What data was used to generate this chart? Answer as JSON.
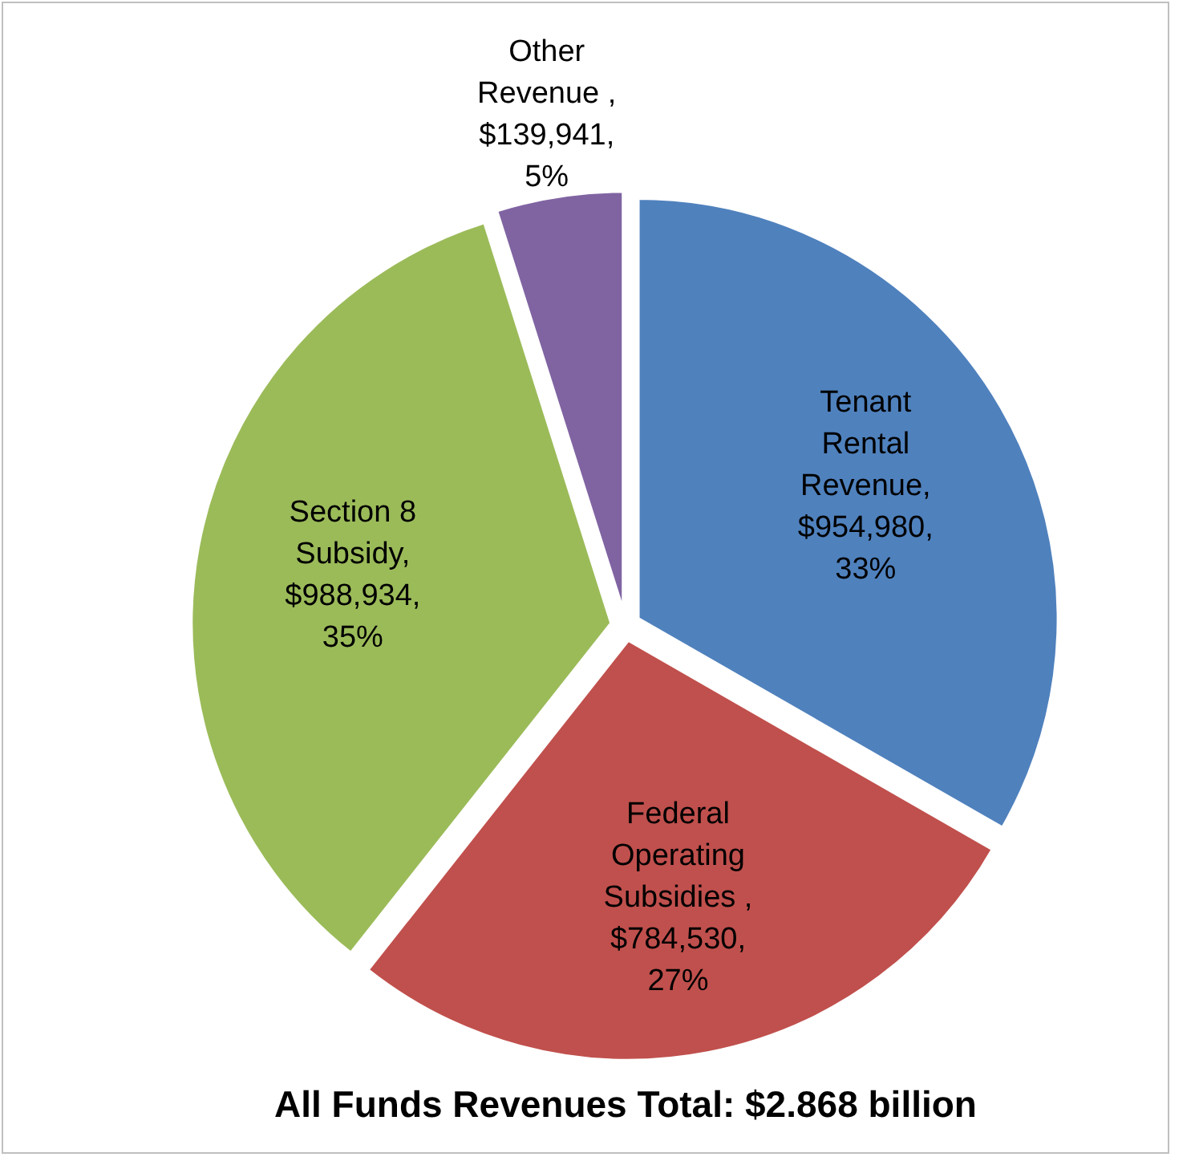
{
  "chart_data": {
    "type": "pie",
    "title": "All Funds Revenues Total: $2.868 billion",
    "categories": [
      "Tenant Rental Revenue",
      "Federal Operating Subsidies ",
      "Section 8 Subsidy",
      "Other Revenue "
    ],
    "values": [
      954980,
      784530,
      988934,
      139941
    ],
    "value_labels": [
      ", $954,980, 33%",
      ", $784,530, 27%",
      ", $988,934, 35%",
      ", $139,941, 5%"
    ],
    "colors": [
      "#4f81bd",
      "#c0504d",
      "#9bbb59",
      "#8064a2"
    ]
  }
}
